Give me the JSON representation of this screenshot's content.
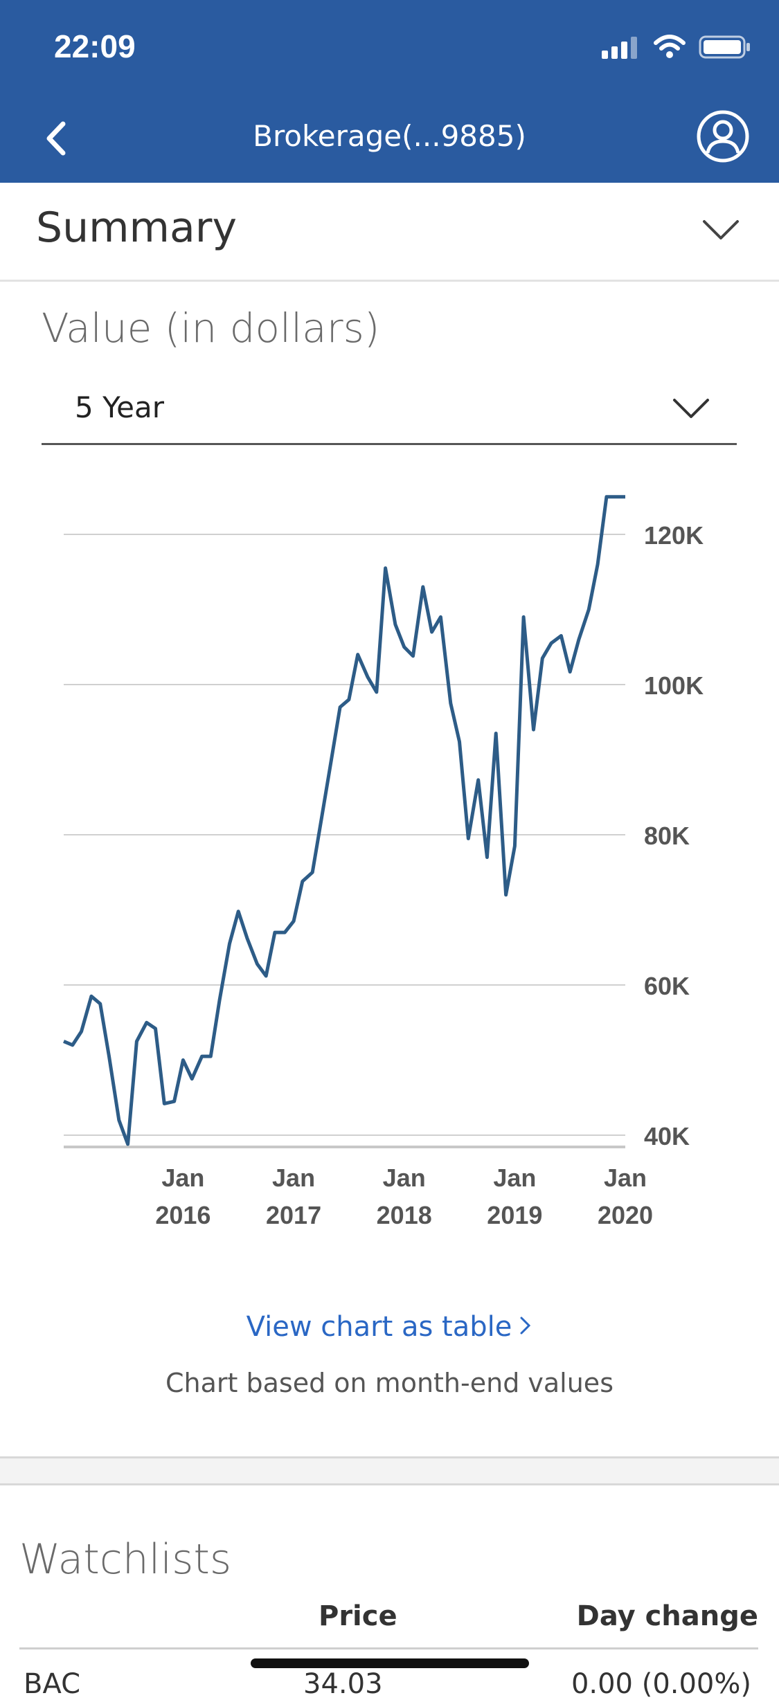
{
  "status_bar": {
    "time": "22:09"
  },
  "nav": {
    "title": "Brokerage(...9885)"
  },
  "summary": {
    "title": "Summary"
  },
  "chart_section": {
    "title": "Value (in dollars)",
    "period_selected": "5 Year",
    "link_label": "View chart as table",
    "note": "Chart based on month-end values"
  },
  "watchlists": {
    "title": "Watchlists",
    "col_price": "Price",
    "col_change": "Day change",
    "rows": [
      {
        "symbol": "BAC",
        "price": "34.03",
        "change": "0.00 (0.00%)"
      }
    ]
  },
  "colors": {
    "header_bg": "#2a5ba0",
    "line": "#2d5c87",
    "link": "#2a67c4"
  },
  "chart_data": {
    "type": "line",
    "title": "",
    "xlabel": "",
    "ylabel": "",
    "y_ticks": [
      "120K",
      "100K",
      "80K",
      "60K",
      "40K"
    ],
    "y_tick_values": [
      120000,
      100000,
      80000,
      60000,
      40000
    ],
    "x_ticks": [
      {
        "line1": "Jan",
        "line2": "2016",
        "value": 2016.0
      },
      {
        "line1": "Jan",
        "line2": "2017",
        "value": 2017.0
      },
      {
        "line1": "Jan",
        "line2": "2018",
        "value": 2018.0
      },
      {
        "line1": "Jan",
        "line2": "2019",
        "value": 2019.0
      },
      {
        "line1": "Jan",
        "line2": "2020",
        "value": 2020.0
      }
    ],
    "ylim": [
      38500,
      125500
    ],
    "xlim": [
      2014.92,
      2020.0
    ],
    "grid": true,
    "series": [
      {
        "x": [
          2014.92,
          2015.0,
          2015.08,
          2015.17,
          2015.25,
          2015.33,
          2015.42,
          2015.5,
          2015.58,
          2015.67,
          2015.75,
          2015.83,
          2015.92,
          2016.0,
          2016.08,
          2016.17,
          2016.25,
          2016.33,
          2016.42,
          2016.5,
          2016.58,
          2016.67,
          2016.75,
          2016.83,
          2016.92,
          2017.0,
          2017.08,
          2017.17,
          2017.25,
          2017.33,
          2017.42,
          2017.5,
          2017.58,
          2017.67,
          2017.75,
          2017.83,
          2017.92,
          2018.0,
          2018.08,
          2018.17,
          2018.25,
          2018.33,
          2018.42,
          2018.5,
          2018.58,
          2018.67,
          2018.75,
          2018.83,
          2018.92,
          2019.0,
          2019.08,
          2019.17,
          2019.25,
          2019.33,
          2019.42,
          2019.5,
          2019.58,
          2019.67,
          2019.75,
          2019.83,
          2019.92,
          2020.0
        ],
        "y": [
          52500,
          52000,
          53800,
          58500,
          57500,
          50500,
          42000,
          38800,
          52500,
          55000,
          54200,
          44200,
          44500,
          50000,
          47500,
          50500,
          50500,
          58000,
          65500,
          69800,
          66200,
          62800,
          61200,
          67000,
          67000,
          68500,
          73800,
          75000,
          82000,
          89000,
          97000,
          98000,
          104000,
          101000,
          99000,
          115500,
          108000,
          105000,
          103800,
          113000,
          107000,
          109000,
          97500,
          92400,
          79500,
          87300,
          77000,
          93500,
          72000,
          78500,
          109000,
          94000,
          103500,
          105500,
          106500,
          101700,
          106000,
          110000,
          116000,
          125000,
          125000,
          125000
        ]
      }
    ]
  }
}
